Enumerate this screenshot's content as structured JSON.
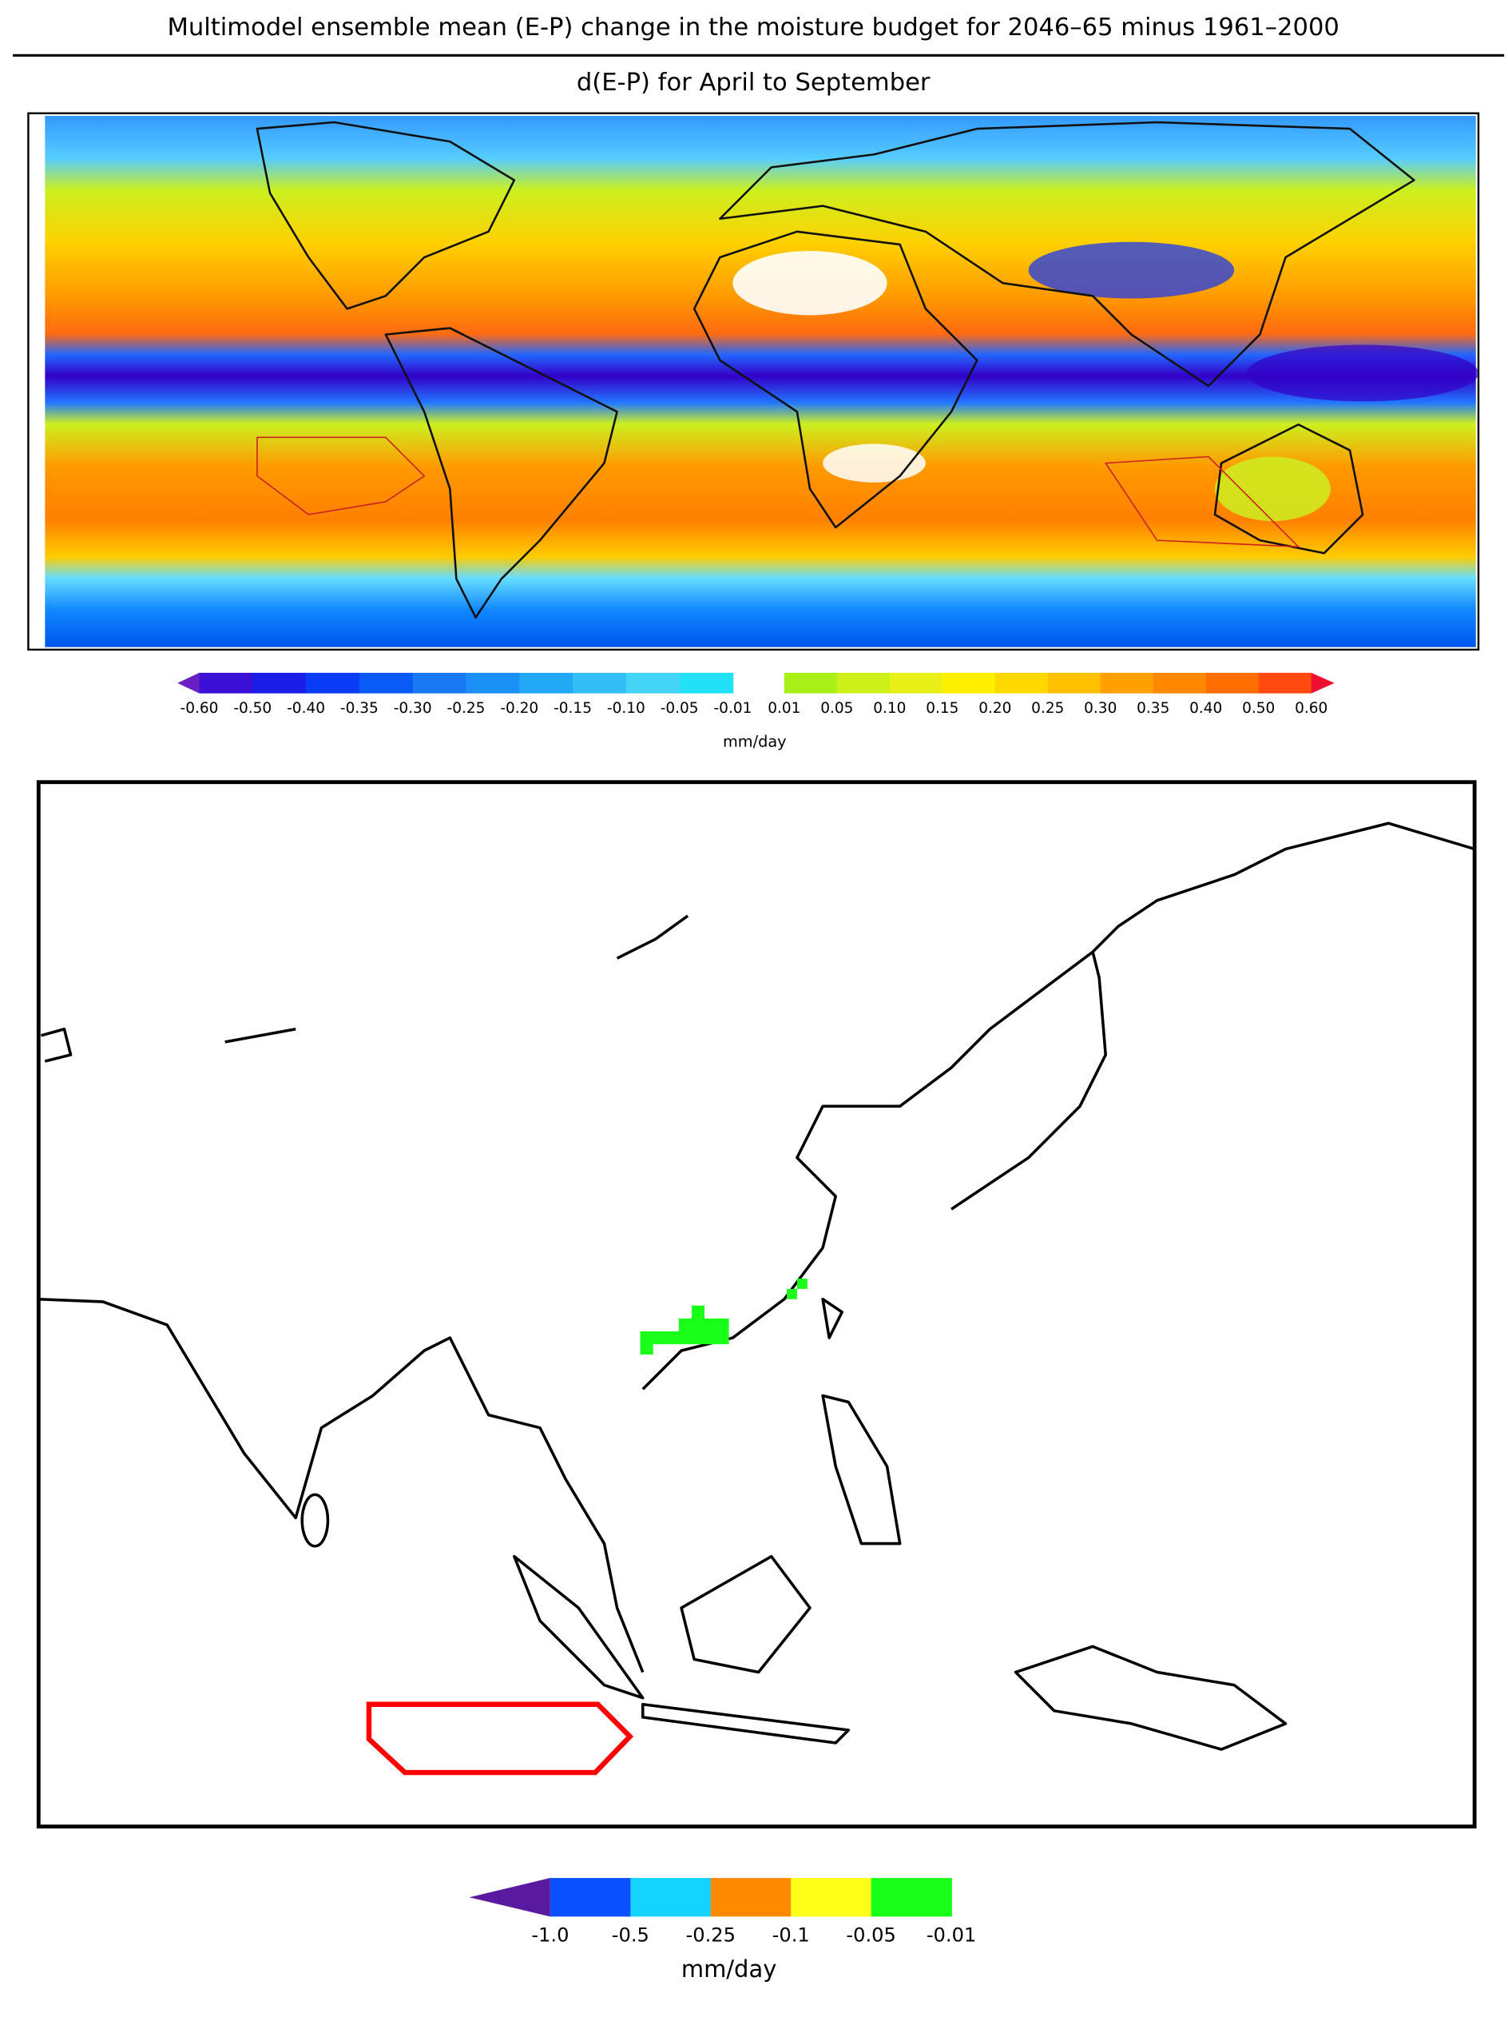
{
  "title": "Multimodel ensemble mean (E-P) change in the moisture budget for 2046–65 minus 1961–2000",
  "top_panel": {
    "subtitle": "d(E-P) for April to September",
    "colorbar": {
      "min_color": "#6a1fc2",
      "max_color": "#ee1030",
      "colors": [
        "#3a10d6",
        "#1a1ee6",
        "#0a3cf5",
        "#0a5af5",
        "#1a78f5",
        "#1a90f5",
        "#23a8f5",
        "#33bff5",
        "#44d4f5",
        "#22e0f5",
        "#a8f018",
        "#ccf018",
        "#e8f018",
        "#fff000",
        "#ffd800",
        "#ffc000",
        "#ffa000",
        "#ff8800",
        "#ff6e00",
        "#ff4a10"
      ],
      "labels": [
        "-0.60",
        "-0.50",
        "-0.40",
        "-0.35",
        "-0.30",
        "-0.25",
        "-0.20",
        "-0.15",
        "-0.10",
        "-0.05",
        "-0.01",
        "0.01",
        "0.05",
        "0.10",
        "0.15",
        "0.20",
        "0.25",
        "0.30",
        "0.35",
        "0.40",
        "0.50",
        "0.60"
      ],
      "unit": "mm/day"
    }
  },
  "bottom_panel": {
    "colorbar": {
      "min_color": "#5a1aa0",
      "colors": [
        "#0a50ff",
        "#14d4ff",
        "#ff8a00",
        "#ffff1a",
        "#1aff1a"
      ],
      "labels": [
        "-1.0",
        "-0.5",
        "-0.25",
        "-0.1",
        "-0.05",
        "-0.01"
      ],
      "unit": "mm/day"
    }
  }
}
